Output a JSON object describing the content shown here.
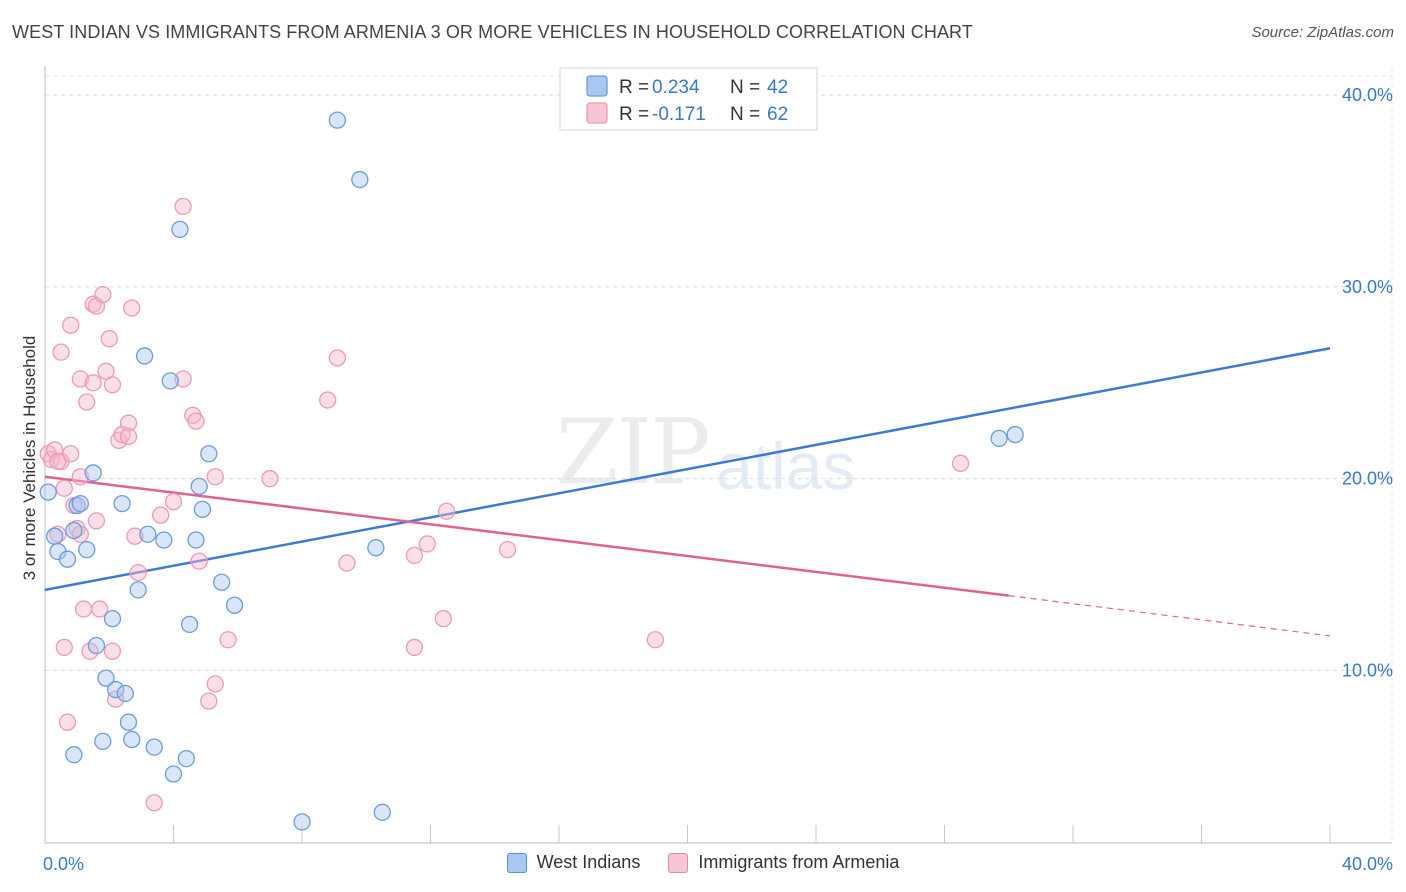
{
  "title": "WEST INDIAN VS IMMIGRANTS FROM ARMENIA 3 OR MORE VEHICLES IN HOUSEHOLD CORRELATION CHART",
  "source": "Source: ZipAtlas.com",
  "watermark": {
    "a": "ZIP",
    "b": "atlas"
  },
  "colors": {
    "blue": "#3f79d6",
    "blue_fill": "#a9c8f0",
    "pink": "#e0628f",
    "pink_fill": "#f6b7cb",
    "tick_label": "#3b78c9"
  },
  "legend": {
    "rows": [
      {
        "r_label": "R = ",
        "r_value": "0.234",
        "n_label": "N = ",
        "n_value": "42"
      },
      {
        "r_label": "R = ",
        "r_value": "-0.171",
        "n_label": "N = ",
        "n_value": "62"
      }
    ]
  },
  "bottom_legend": [
    "West Indians",
    "Immigrants from Armenia"
  ],
  "chart_data": {
    "type": "scatter",
    "xlabel": "",
    "ylabel": "3 or more Vehicles in Household",
    "xlim": [
      0,
      40
    ],
    "ylim": [
      1,
      41
    ],
    "x_tick_labels": [
      "0.0%",
      "40.0%"
    ],
    "y_ticks": [
      10,
      20,
      30,
      40
    ],
    "y_tick_labels": [
      "10.0%",
      "20.0%",
      "30.0%",
      "40.0%"
    ],
    "grid": true,
    "series": [
      {
        "name": "West Indians",
        "r": 0.234,
        "n": 42,
        "trend": {
          "x0": 0,
          "y0": 14.2,
          "x1": 40,
          "y1": 26.8
        },
        "points": [
          [
            0.1,
            19.3
          ],
          [
            0.3,
            17.0
          ],
          [
            0.4,
            16.2
          ],
          [
            0.7,
            15.8
          ],
          [
            0.9,
            17.3
          ],
          [
            1.0,
            18.6
          ],
          [
            1.1,
            18.7
          ],
          [
            1.3,
            16.3
          ],
          [
            1.5,
            20.3
          ],
          [
            1.6,
            11.3
          ],
          [
            0.9,
            5.6
          ],
          [
            1.8,
            6.3
          ],
          [
            1.9,
            9.6
          ],
          [
            2.2,
            9.0
          ],
          [
            2.1,
            12.7
          ],
          [
            2.4,
            18.7
          ],
          [
            2.5,
            8.8
          ],
          [
            2.6,
            7.3
          ],
          [
            2.7,
            6.4
          ],
          [
            2.9,
            14.2
          ],
          [
            3.1,
            26.4
          ],
          [
            3.2,
            17.1
          ],
          [
            3.4,
            6.0
          ],
          [
            3.7,
            16.8
          ],
          [
            3.9,
            25.1
          ],
          [
            4.0,
            4.6
          ],
          [
            4.2,
            33.0
          ],
          [
            4.4,
            5.4
          ],
          [
            4.5,
            12.4
          ],
          [
            4.7,
            16.8
          ],
          [
            4.8,
            19.6
          ],
          [
            4.9,
            18.4
          ],
          [
            5.1,
            21.3
          ],
          [
            5.5,
            14.6
          ],
          [
            5.9,
            13.4
          ],
          [
            8.0,
            2.1
          ],
          [
            9.1,
            38.7
          ],
          [
            9.8,
            35.6
          ],
          [
            10.3,
            16.4
          ],
          [
            10.5,
            2.6
          ],
          [
            29.7,
            22.1
          ],
          [
            30.2,
            22.3
          ]
        ]
      },
      {
        "name": "Immigrants from Armenia",
        "r": -0.171,
        "n": 62,
        "trend": {
          "x0": 0,
          "y0": 20.1,
          "x1": 30.0,
          "y1": 13.9
        },
        "trend_dashed": {
          "x0": 30.0,
          "y0": 13.9,
          "x1": 40,
          "y1": 11.8
        },
        "points": [
          [
            0.1,
            21.3
          ],
          [
            0.2,
            21.0
          ],
          [
            0.3,
            21.5
          ],
          [
            0.4,
            17.1
          ],
          [
            0.5,
            20.9
          ],
          [
            0.6,
            19.5
          ],
          [
            0.5,
            26.6
          ],
          [
            0.6,
            11.2
          ],
          [
            0.8,
            21.3
          ],
          [
            0.7,
            7.3
          ],
          [
            0.8,
            28.0
          ],
          [
            0.9,
            18.6
          ],
          [
            1.0,
            17.4
          ],
          [
            1.1,
            20.1
          ],
          [
            1.1,
            17.1
          ],
          [
            1.1,
            25.2
          ],
          [
            1.2,
            13.2
          ],
          [
            1.3,
            24.0
          ],
          [
            1.4,
            11.0
          ],
          [
            1.5,
            25.0
          ],
          [
            1.5,
            29.1
          ],
          [
            1.6,
            29.0
          ],
          [
            1.6,
            17.8
          ],
          [
            1.7,
            13.2
          ],
          [
            1.8,
            29.6
          ],
          [
            1.9,
            25.6
          ],
          [
            2.0,
            27.3
          ],
          [
            2.1,
            11.0
          ],
          [
            2.1,
            24.9
          ],
          [
            2.2,
            8.5
          ],
          [
            2.3,
            22.0
          ],
          [
            2.4,
            22.3
          ],
          [
            2.6,
            22.9
          ],
          [
            2.6,
            22.2
          ],
          [
            2.7,
            28.9
          ],
          [
            2.8,
            17.0
          ],
          [
            2.9,
            15.1
          ],
          [
            3.4,
            3.1
          ],
          [
            3.6,
            18.1
          ],
          [
            4.0,
            18.8
          ],
          [
            4.3,
            34.2
          ],
          [
            4.3,
            25.2
          ],
          [
            4.6,
            23.3
          ],
          [
            4.7,
            23.0
          ],
          [
            4.8,
            15.7
          ],
          [
            5.1,
            8.4
          ],
          [
            5.3,
            9.3
          ],
          [
            5.3,
            20.1
          ],
          [
            5.7,
            11.6
          ],
          [
            7.0,
            20.0
          ],
          [
            8.8,
            24.1
          ],
          [
            9.1,
            26.3
          ],
          [
            9.4,
            15.6
          ],
          [
            11.5,
            11.2
          ],
          [
            11.5,
            16.0
          ],
          [
            11.9,
            16.6
          ],
          [
            12.4,
            12.7
          ],
          [
            12.5,
            18.3
          ],
          [
            14.4,
            16.3
          ],
          [
            19.0,
            11.6
          ],
          [
            28.5,
            20.8
          ],
          [
            0.4,
            20.9
          ]
        ]
      }
    ]
  }
}
